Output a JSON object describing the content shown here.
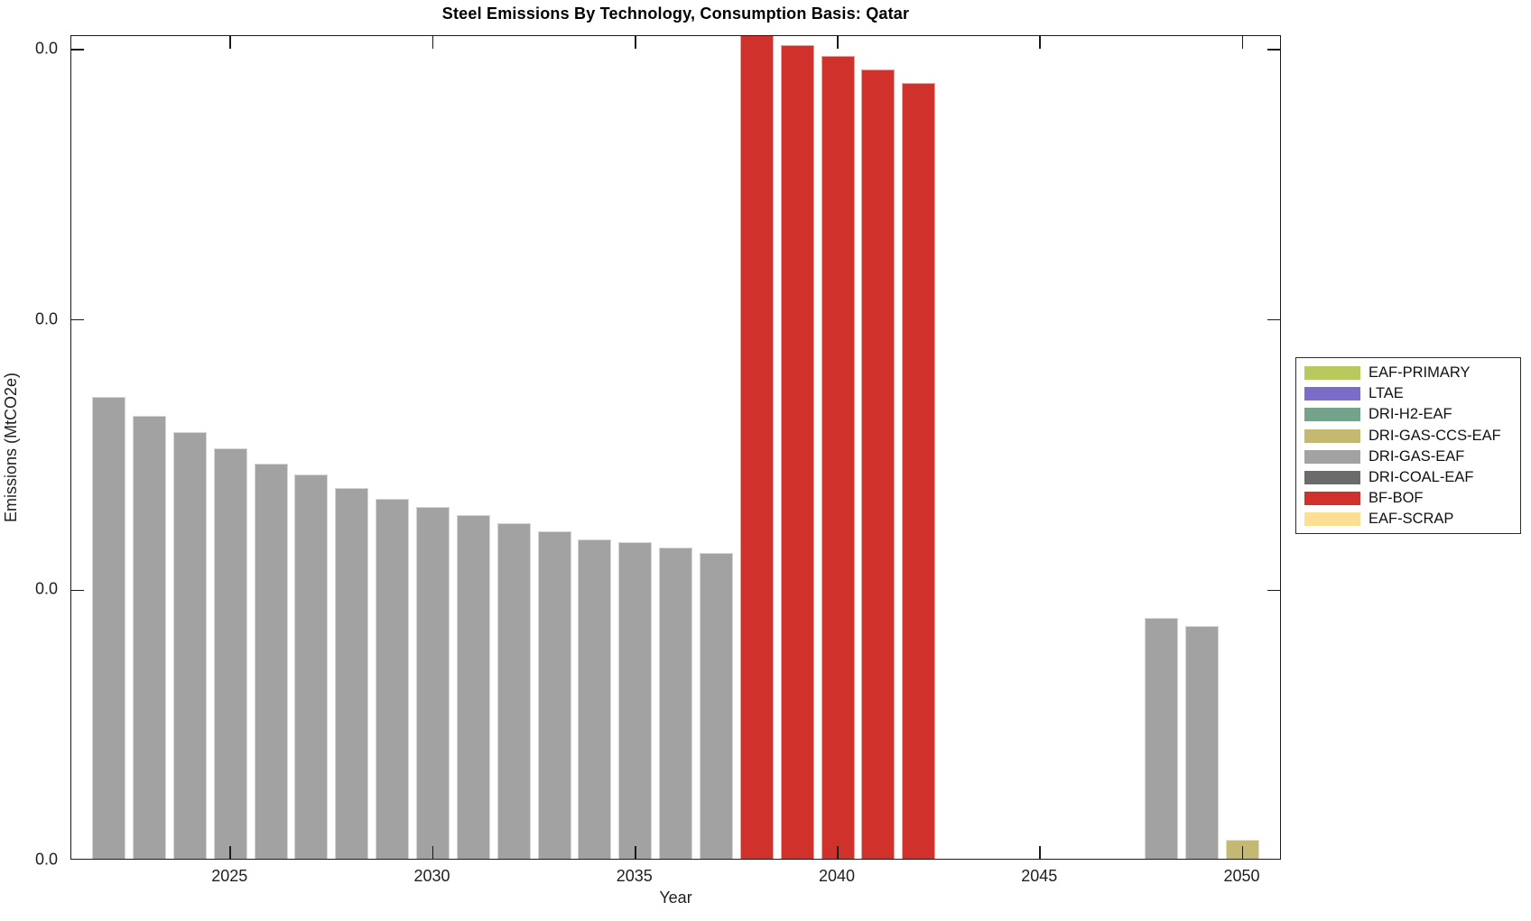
{
  "chart_data": {
    "type": "bar",
    "title": "Steel Emissions By Technology, Consumption Basis: Qatar",
    "xlabel": "Year",
    "ylabel": "Emissions (MtCO2e)",
    "note": "Single technology bar per year; y tick labels all render as 0.0 (values are very small). Bar values below are expressed in y-axis tick units (1 unit = spacing between adjacent y ticks). The 2038 bar is clipped by the top of the axes.",
    "x_domain": [
      2021.07,
      2050.97
    ],
    "ylim_units": [
      0,
      3.05
    ],
    "bar_width_fraction": 0.825,
    "grid": false,
    "x_ticks": [
      2025,
      2030,
      2035,
      2040,
      2045,
      2050
    ],
    "y_ticks": [
      {
        "value": 0,
        "label": "0.0"
      },
      {
        "value": 1,
        "label": "0.0"
      },
      {
        "value": 2,
        "label": "0.0"
      },
      {
        "value": 3,
        "label": "0.0"
      }
    ],
    "legend": {
      "position": "outside-right",
      "items": [
        {
          "label": "EAF-PRIMARY",
          "color": "#b9c95e"
        },
        {
          "label": "LTAE",
          "color": "#7a6cc8"
        },
        {
          "label": "DRI-H2-EAF",
          "color": "#74a28a"
        },
        {
          "label": "DRI-GAS-CCS-EAF",
          "color": "#c4b972"
        },
        {
          "label": "DRI-GAS-EAF",
          "color": "#a2a2a2"
        },
        {
          "label": "DRI-COAL-EAF",
          "color": "#6b6b6b"
        },
        {
          "label": "BF-BOF",
          "color": "#d0322b"
        },
        {
          "label": "EAF-SCRAP",
          "color": "#fcdf92"
        }
      ]
    },
    "bars": [
      {
        "year": 2022,
        "technology": "DRI-GAS-EAF",
        "value": 1.71
      },
      {
        "year": 2023,
        "technology": "DRI-GAS-EAF",
        "value": 1.64
      },
      {
        "year": 2024,
        "technology": "DRI-GAS-EAF",
        "value": 1.58
      },
      {
        "year": 2025,
        "technology": "DRI-GAS-EAF",
        "value": 1.52
      },
      {
        "year": 2026,
        "technology": "DRI-GAS-EAF",
        "value": 1.46
      },
      {
        "year": 2027,
        "technology": "DRI-GAS-EAF",
        "value": 1.42
      },
      {
        "year": 2028,
        "technology": "DRI-GAS-EAF",
        "value": 1.37
      },
      {
        "year": 2029,
        "technology": "DRI-GAS-EAF",
        "value": 1.33
      },
      {
        "year": 2030,
        "technology": "DRI-GAS-EAF",
        "value": 1.3
      },
      {
        "year": 2031,
        "technology": "DRI-GAS-EAF",
        "value": 1.27
      },
      {
        "year": 2032,
        "technology": "DRI-GAS-EAF",
        "value": 1.24
      },
      {
        "year": 2033,
        "technology": "DRI-GAS-EAF",
        "value": 1.21
      },
      {
        "year": 2034,
        "technology": "DRI-GAS-EAF",
        "value": 1.18
      },
      {
        "year": 2035,
        "technology": "DRI-GAS-EAF",
        "value": 1.17
      },
      {
        "year": 2036,
        "technology": "DRI-GAS-EAF",
        "value": 1.15
      },
      {
        "year": 2037,
        "technology": "DRI-GAS-EAF",
        "value": 1.13
      },
      {
        "year": 2038,
        "technology": "BF-BOF",
        "value": 3.1,
        "clipped": true
      },
      {
        "year": 2039,
        "technology": "BF-BOF",
        "value": 3.01
      },
      {
        "year": 2040,
        "technology": "BF-BOF",
        "value": 2.97
      },
      {
        "year": 2041,
        "technology": "BF-BOF",
        "value": 2.92
      },
      {
        "year": 2042,
        "technology": "BF-BOF",
        "value": 2.87
      },
      {
        "year": 2048,
        "technology": "DRI-GAS-EAF",
        "value": 0.89
      },
      {
        "year": 2049,
        "technology": "DRI-GAS-EAF",
        "value": 0.86
      },
      {
        "year": 2050,
        "technology": "DRI-GAS-CCS-EAF",
        "value": 0.07
      }
    ]
  }
}
